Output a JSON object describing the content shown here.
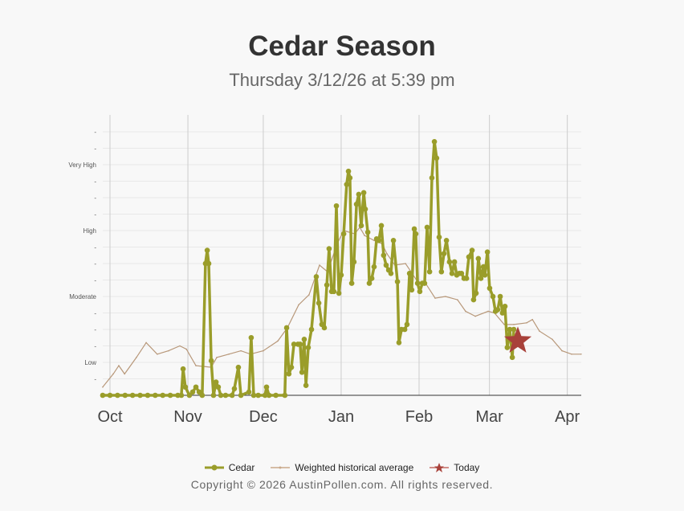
{
  "chart_data": {
    "type": "line",
    "title": "Cedar Season",
    "subtitle": "Thursday 3/12/26 at 5:39 pm",
    "x_unit": "days since Oct 1",
    "xlim": [
      -3,
      188
    ],
    "ylim": [
      0,
      16
    ],
    "x_ticks": [
      {
        "label": "Oct",
        "day": 0
      },
      {
        "label": "Nov",
        "day": 31
      },
      {
        "label": "Dec",
        "day": 61
      },
      {
        "label": "Jan",
        "day": 92
      },
      {
        "label": "Feb",
        "day": 123
      },
      {
        "label": "Mar",
        "day": 151
      },
      {
        "label": "Apr",
        "day": 182
      }
    ],
    "y_ticks": [
      "",
      "-",
      "Low",
      "-",
      "-",
      "-",
      "Moderate",
      "-",
      "-",
      "-",
      "High",
      "-",
      "-",
      "-",
      "Very High",
      "-",
      "-"
    ],
    "colors": {
      "cedar": "#9a9d2a",
      "average": "#b8987a",
      "today": "#a8413a"
    },
    "series": [
      {
        "name": "Cedar",
        "points": [
          [
            -2.9,
            0
          ],
          [
            0,
            0
          ],
          [
            3,
            0
          ],
          [
            6,
            0
          ],
          [
            9,
            0
          ],
          [
            12,
            0
          ],
          [
            15,
            0
          ],
          [
            18,
            0
          ],
          [
            21,
            0
          ],
          [
            24,
            0
          ],
          [
            27,
            0
          ],
          [
            28.4,
            0
          ],
          [
            29.1,
            1.6
          ],
          [
            30.0,
            0.5
          ],
          [
            31.6,
            0
          ],
          [
            32.9,
            0.2
          ],
          [
            34.2,
            0.5
          ],
          [
            35.5,
            0.2
          ],
          [
            36.7,
            0
          ],
          [
            38.0,
            8.0
          ],
          [
            38.7,
            8.8
          ],
          [
            39.3,
            8.0
          ],
          [
            40.3,
            2.1
          ],
          [
            41.2,
            0
          ],
          [
            42.2,
            0.8
          ],
          [
            43.1,
            0.5
          ],
          [
            44.1,
            0
          ],
          [
            46,
            0
          ],
          [
            48.6,
            0
          ],
          [
            49.5,
            0.4
          ],
          [
            51.1,
            1.7
          ],
          [
            52.1,
            0
          ],
          [
            55.3,
            0.2
          ],
          [
            56.2,
            3.5
          ],
          [
            57.2,
            0
          ],
          [
            59,
            0
          ],
          [
            61.7,
            0
          ],
          [
            62.3,
            0.5
          ],
          [
            63.3,
            0
          ],
          [
            66,
            0
          ],
          [
            69.6,
            0
          ],
          [
            70.3,
            4.1
          ],
          [
            71.2,
            1.3
          ],
          [
            72.2,
            1.7
          ],
          [
            73.2,
            3.1
          ],
          [
            74.8,
            3.1
          ],
          [
            75.7,
            3.1
          ],
          [
            76.4,
            1.4
          ],
          [
            77.3,
            3.4
          ],
          [
            78.0,
            0.6
          ],
          [
            78.9,
            2.9
          ],
          [
            80.2,
            4.0
          ],
          [
            82.1,
            7.2
          ],
          [
            83.1,
            5.6
          ],
          [
            84.3,
            4.3
          ],
          [
            85.3,
            4.1
          ],
          [
            86.3,
            6.7
          ],
          [
            87.2,
            8.9
          ],
          [
            88.2,
            6.3
          ],
          [
            89.1,
            6.3
          ],
          [
            90.1,
            11.5
          ],
          [
            91.1,
            6.2
          ],
          [
            92.0,
            7.3
          ],
          [
            93.0,
            9.8
          ],
          [
            94.2,
            12.8
          ],
          [
            94.9,
            13.6
          ],
          [
            95.5,
            13.2
          ],
          [
            96.2,
            6.8
          ],
          [
            97.1,
            8.1
          ],
          [
            98.1,
            11.6
          ],
          [
            99.0,
            12.2
          ],
          [
            100.0,
            10.3
          ],
          [
            101.0,
            12.3
          ],
          [
            101.6,
            11.3
          ],
          [
            102.6,
            9.9
          ],
          [
            103.2,
            6.8
          ],
          [
            104.2,
            7.1
          ],
          [
            105.1,
            7.8
          ],
          [
            106.1,
            9.5
          ],
          [
            107.0,
            9.4
          ],
          [
            108.0,
            10.3
          ],
          [
            108.9,
            8.5
          ],
          [
            109.9,
            7.9
          ],
          [
            110.9,
            7.6
          ],
          [
            111.8,
            7.4
          ],
          [
            112.8,
            9.4
          ],
          [
            114.4,
            6.9
          ],
          [
            115.0,
            3.2
          ],
          [
            116.0,
            4.0
          ],
          [
            117.3,
            4.0
          ],
          [
            118.2,
            4.3
          ],
          [
            119.2,
            7.4
          ],
          [
            120.1,
            6.4
          ],
          [
            121.1,
            10.1
          ],
          [
            121.7,
            9.8
          ],
          [
            122.4,
            6.8
          ],
          [
            123.3,
            6.3
          ],
          [
            124.3,
            6.8
          ],
          [
            125.2,
            6.8
          ],
          [
            126.2,
            10.2
          ],
          [
            127.2,
            7.5
          ],
          [
            128.1,
            13.2
          ],
          [
            129.1,
            15.4
          ],
          [
            130.0,
            14.4
          ],
          [
            131.0,
            9.6
          ],
          [
            131.9,
            7.5
          ],
          [
            132.9,
            8.6
          ],
          [
            133.9,
            9.4
          ],
          [
            135.1,
            8.1
          ],
          [
            136.1,
            7.4
          ],
          [
            137.1,
            8.1
          ],
          [
            138.0,
            7.3
          ],
          [
            139.0,
            7.4
          ],
          [
            139.9,
            7.4
          ],
          [
            140.9,
            7.1
          ],
          [
            141.9,
            7.1
          ],
          [
            142.8,
            8.4
          ],
          [
            144.1,
            8.8
          ],
          [
            144.7,
            5.8
          ],
          [
            145.7,
            6.2
          ],
          [
            146.6,
            8.3
          ],
          [
            147.6,
            7.1
          ],
          [
            148.6,
            7.8
          ],
          [
            149.2,
            7.3
          ],
          [
            150.2,
            8.7
          ],
          [
            151.1,
            6.5
          ],
          [
            152.4,
            6.0
          ],
          [
            153.4,
            5.1
          ],
          [
            154.3,
            5.2
          ],
          [
            155.3,
            6.0
          ],
          [
            156.2,
            5.0
          ],
          [
            157.2,
            5.4
          ],
          [
            158.1,
            2.9
          ],
          [
            159.1,
            4.0
          ],
          [
            160.1,
            2.3
          ],
          [
            160.7,
            4.0
          ]
        ]
      },
      {
        "name": "Weighted historical average",
        "points": [
          [
            -2.9,
            0.5
          ],
          [
            1.3,
            1.3
          ],
          [
            3.5,
            1.8
          ],
          [
            5.8,
            1.3
          ],
          [
            10.5,
            2.3
          ],
          [
            14.4,
            3.2
          ],
          [
            18.8,
            2.5
          ],
          [
            23.3,
            2.7
          ],
          [
            27.8,
            3.0
          ],
          [
            30.4,
            2.8
          ],
          [
            34.2,
            1.8
          ],
          [
            40.3,
            1.7
          ],
          [
            42.5,
            2.3
          ],
          [
            47.3,
            2.5
          ],
          [
            52.1,
            2.7
          ],
          [
            55.9,
            2.5
          ],
          [
            61.0,
            2.7
          ],
          [
            66.8,
            3.3
          ],
          [
            70.6,
            4.1
          ],
          [
            75.1,
            5.5
          ],
          [
            79.2,
            6.1
          ],
          [
            83.4,
            7.9
          ],
          [
            86.6,
            7.5
          ],
          [
            90.4,
            9.2
          ],
          [
            93.0,
            10.0
          ],
          [
            97.4,
            9.8
          ],
          [
            99.4,
            10.2
          ],
          [
            101.3,
            9.7
          ],
          [
            105.1,
            9.4
          ],
          [
            108.3,
            9.2
          ],
          [
            110.2,
            8.6
          ],
          [
            113.4,
            7.9
          ],
          [
            117.6,
            8.0
          ],
          [
            122.4,
            6.9
          ],
          [
            125.6,
            6.8
          ],
          [
            129.4,
            5.9
          ],
          [
            133.5,
            6.0
          ],
          [
            138.3,
            5.8
          ],
          [
            141.5,
            5.1
          ],
          [
            145.4,
            4.8
          ],
          [
            150.5,
            5.1
          ],
          [
            153.0,
            5.0
          ],
          [
            156.9,
            4.3
          ],
          [
            160.7,
            4.3
          ],
          [
            165.8,
            4.4
          ],
          [
            168.1,
            4.6
          ],
          [
            170.9,
            3.9
          ],
          [
            176.0,
            3.4
          ],
          [
            179.9,
            2.7
          ],
          [
            183.7,
            2.5
          ],
          [
            187.5,
            2.5
          ]
        ]
      },
      {
        "name": "Today",
        "points": [
          [
            162.3,
            3.3
          ]
        ]
      }
    ]
  },
  "legend": {
    "cedar": "Cedar",
    "average": "Weighted historical average",
    "today": "Today"
  },
  "copyright": "Copyright © 2026 AustinPollen.com.  All rights reserved."
}
